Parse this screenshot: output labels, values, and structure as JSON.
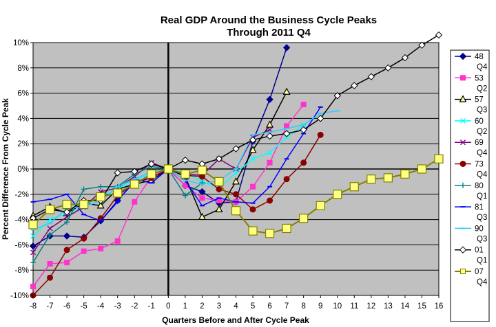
{
  "chart_data": {
    "type": "line",
    "title": [
      "Real GDP Around the Business Cycle Peaks",
      "Through 2011 Q4"
    ],
    "xlabel": "Quarters Before and After Cycle Peak",
    "ylabel": "Percent Difference From Cycle Peak",
    "xlim": [
      -8,
      16
    ],
    "ylim": [
      -10,
      10
    ],
    "x_ticks": [
      -8,
      -7,
      -6,
      -5,
      -4,
      -3,
      -2,
      -1,
      0,
      1,
      2,
      3,
      4,
      5,
      6,
      7,
      8,
      9,
      10,
      11,
      12,
      13,
      14,
      15,
      16
    ],
    "y_ticks": [
      -10,
      -8,
      -6,
      -4,
      -2,
      0,
      2,
      4,
      6,
      8,
      10
    ],
    "y_tick_labels": [
      "-10%",
      "-8%",
      "-6%",
      "-4%",
      "-2%",
      "0%",
      "2%",
      "4%",
      "6%",
      "8%",
      "10%"
    ],
    "grid": "horizontal",
    "legend_position": "right",
    "colors": {
      "plot_background": "#c0c0c0",
      "grid": "#000000"
    },
    "series": [
      {
        "name": "48 Q4",
        "legend_lines": [
          "48",
          "Q4"
        ],
        "color": "#00008b",
        "marker": "diamond",
        "marker_fill": "#00008b",
        "x": [
          -8,
          -7,
          -6,
          -5,
          -4,
          -3,
          -2,
          -1,
          0,
          1,
          2,
          3,
          4,
          5,
          6,
          7
        ],
        "y": [
          -6.1,
          -5.3,
          -5.3,
          -5.4,
          -4.1,
          -2.5,
          -1.0,
          -0.7,
          0,
          -1.3,
          -1.8,
          -2.7,
          -2.6,
          2.2,
          5.5,
          9.6
        ]
      },
      {
        "name": "53 Q2",
        "legend_lines": [
          "53",
          "Q2"
        ],
        "color": "#ff33cc",
        "marker": "square",
        "marker_fill": "#ff33cc",
        "x": [
          -8,
          -7,
          -6,
          -5,
          -4,
          -3,
          -2,
          -1,
          0,
          1,
          2,
          3,
          4,
          5,
          6,
          7,
          8
        ],
        "y": [
          -9.3,
          -7.5,
          -7.4,
          -6.5,
          -6.3,
          -5.7,
          -2.6,
          -0.6,
          0,
          -1.3,
          -2.3,
          -2.5,
          -2.6,
          -1.4,
          0.5,
          3.4,
          5.1
        ]
      },
      {
        "name": "57 Q3",
        "legend_lines": [
          "57",
          "Q3"
        ],
        "color": "#000000",
        "marker": "triangle",
        "marker_fill": "#ffff99",
        "x": [
          -8,
          -7,
          -6,
          -5,
          -4,
          -3,
          -2,
          -1,
          0,
          1,
          2,
          3,
          4,
          5,
          6,
          7
        ],
        "y": [
          -3.7,
          -3.0,
          -3.5,
          -2.7,
          -2.9,
          -1.6,
          -1.2,
          -0.9,
          0,
          -0.6,
          -3.8,
          -3.2,
          -1.0,
          1.5,
          3.5,
          6.1
        ]
      },
      {
        "name": "60 Q2",
        "legend_lines": [
          "60",
          "Q2"
        ],
        "color": "#00ffff",
        "marker": "x",
        "marker_fill": "#00ffff",
        "x": [
          -8,
          -7,
          -6,
          -5,
          -4,
          -3,
          -2,
          -1,
          0,
          1,
          2,
          3,
          4,
          5,
          6,
          7,
          8
        ],
        "y": [
          -5.3,
          -4.0,
          -3.5,
          -3.0,
          -2.1,
          -1.6,
          -0.8,
          -0.4,
          0,
          -0.3,
          -1.0,
          -1.5,
          -0.3,
          0.8,
          1.3,
          2.5,
          3.5
        ]
      },
      {
        "name": "69 Q4",
        "legend_lines": [
          "69",
          "Q4"
        ],
        "color": "#800080",
        "marker": "x",
        "marker_fill": "#800080",
        "x": [
          -8,
          -7,
          -6,
          -5,
          -4,
          -3,
          -2,
          -1,
          0,
          1,
          2,
          3,
          4,
          5,
          6
        ],
        "y": [
          -6.6,
          -4.7,
          -3.8,
          -3.0,
          -1.8,
          -1.5,
          -0.6,
          0.5,
          0,
          -0.4,
          -0.5,
          0.8,
          0.0,
          2.5,
          3.1
        ]
      },
      {
        "name": "73 Q4",
        "legend_lines": [
          "73",
          "Q4"
        ],
        "color": "#8b0000",
        "marker": "circle",
        "marker_fill": "#8b0000",
        "x": [
          -8,
          -7,
          -6,
          -5,
          -4,
          -3,
          -2,
          -1,
          0,
          1,
          2,
          3,
          4,
          5,
          6,
          7,
          8,
          9
        ],
        "y": [
          -10.0,
          -8.6,
          -6.4,
          -5.5,
          -3.9,
          -2.1,
          -1.1,
          -0.7,
          0,
          -0.5,
          -0.6,
          -1.6,
          -2.0,
          -3.2,
          -2.5,
          -0.8,
          0.5,
          2.7
        ]
      },
      {
        "name": "80 Q1",
        "legend_lines": [
          "80",
          "Q1"
        ],
        "color": "#008080",
        "marker": "plus",
        "marker_fill": "#008080",
        "x": [
          -8,
          -7,
          -6,
          -5,
          -4,
          -3,
          -2,
          -1,
          0,
          1,
          2
        ],
        "y": [
          -7.4,
          -5.2,
          -4.2,
          -1.6,
          -1.4,
          -1.4,
          -0.4,
          0.2,
          0,
          -2.1,
          -1.1
        ]
      },
      {
        "name": "81 Q3",
        "legend_lines": [
          "81",
          "Q3"
        ],
        "color": "#0000ff",
        "marker": "dash",
        "marker_fill": "#0000ff",
        "x": [
          -8,
          -7,
          -6,
          -5,
          -4,
          -3,
          -2,
          -1,
          0,
          1,
          2,
          3,
          4,
          5,
          6,
          7,
          8,
          9
        ],
        "y": [
          -2.6,
          -2.4,
          -2.0,
          -3.6,
          -4.1,
          -2.6,
          -0.8,
          -1.1,
          0,
          -0.9,
          -2.9,
          -2.3,
          -2.6,
          -2.7,
          -1.4,
          0.8,
          2.8,
          4.9
        ]
      },
      {
        "name": "90 Q3",
        "legend_lines": [
          "90",
          "Q3"
        ],
        "color": "#33ccff",
        "marker": "dash",
        "marker_fill": "#33ccff",
        "x": [
          -8,
          -7,
          -6,
          -5,
          -4,
          -3,
          -2,
          -1,
          0,
          1,
          2,
          3,
          4,
          5,
          6,
          7,
          8,
          9,
          10
        ],
        "y": [
          -4.8,
          -4.3,
          -3.1,
          -3.0,
          -2.5,
          -1.4,
          -0.8,
          -0.2,
          0,
          -0.9,
          -1.2,
          -0.9,
          0.0,
          2.7,
          2.9,
          3.2,
          3.5,
          4.4,
          4.6
        ]
      },
      {
        "name": "01 Q1",
        "legend_lines": [
          "01",
          "Q1"
        ],
        "color": "#000000",
        "marker": "diamond",
        "marker_fill": "#ffffff",
        "x": [
          -8,
          -7,
          -6,
          -5,
          -4,
          -3,
          -2,
          -1,
          0,
          1,
          2,
          3,
          4,
          5,
          6,
          7,
          8,
          9,
          10,
          11,
          12,
          13,
          14,
          15,
          16
        ],
        "y": [
          -3.9,
          -3.2,
          -3.4,
          -2.5,
          -2.5,
          -0.3,
          -0.2,
          0.4,
          0,
          0.7,
          0.4,
          0.8,
          1.6,
          2.3,
          2.6,
          2.8,
          3.1,
          4.0,
          5.8,
          6.6,
          7.3,
          8.0,
          8.8,
          9.8,
          10.6
        ]
      },
      {
        "name": "07 Q4",
        "legend_lines": [
          "07",
          "Q4"
        ],
        "color": "#808000",
        "marker": "square-big",
        "marker_fill": "#ffff80",
        "x": [
          -8,
          -7,
          -6,
          -5,
          -4,
          -3,
          -2,
          -1,
          0,
          1,
          2,
          3,
          4,
          5,
          6,
          7,
          8,
          9,
          10,
          11,
          12,
          13,
          14,
          15,
          16
        ],
        "y": [
          -4.4,
          -3.2,
          -2.8,
          -2.8,
          -2.2,
          -1.9,
          -1.2,
          -0.4,
          0,
          -0.4,
          -0.1,
          -1.0,
          -3.3,
          -4.9,
          -5.1,
          -4.7,
          -3.9,
          -2.9,
          -2.0,
          -1.4,
          -0.8,
          -0.7,
          -0.4,
          0.0,
          0.8
        ]
      }
    ]
  }
}
